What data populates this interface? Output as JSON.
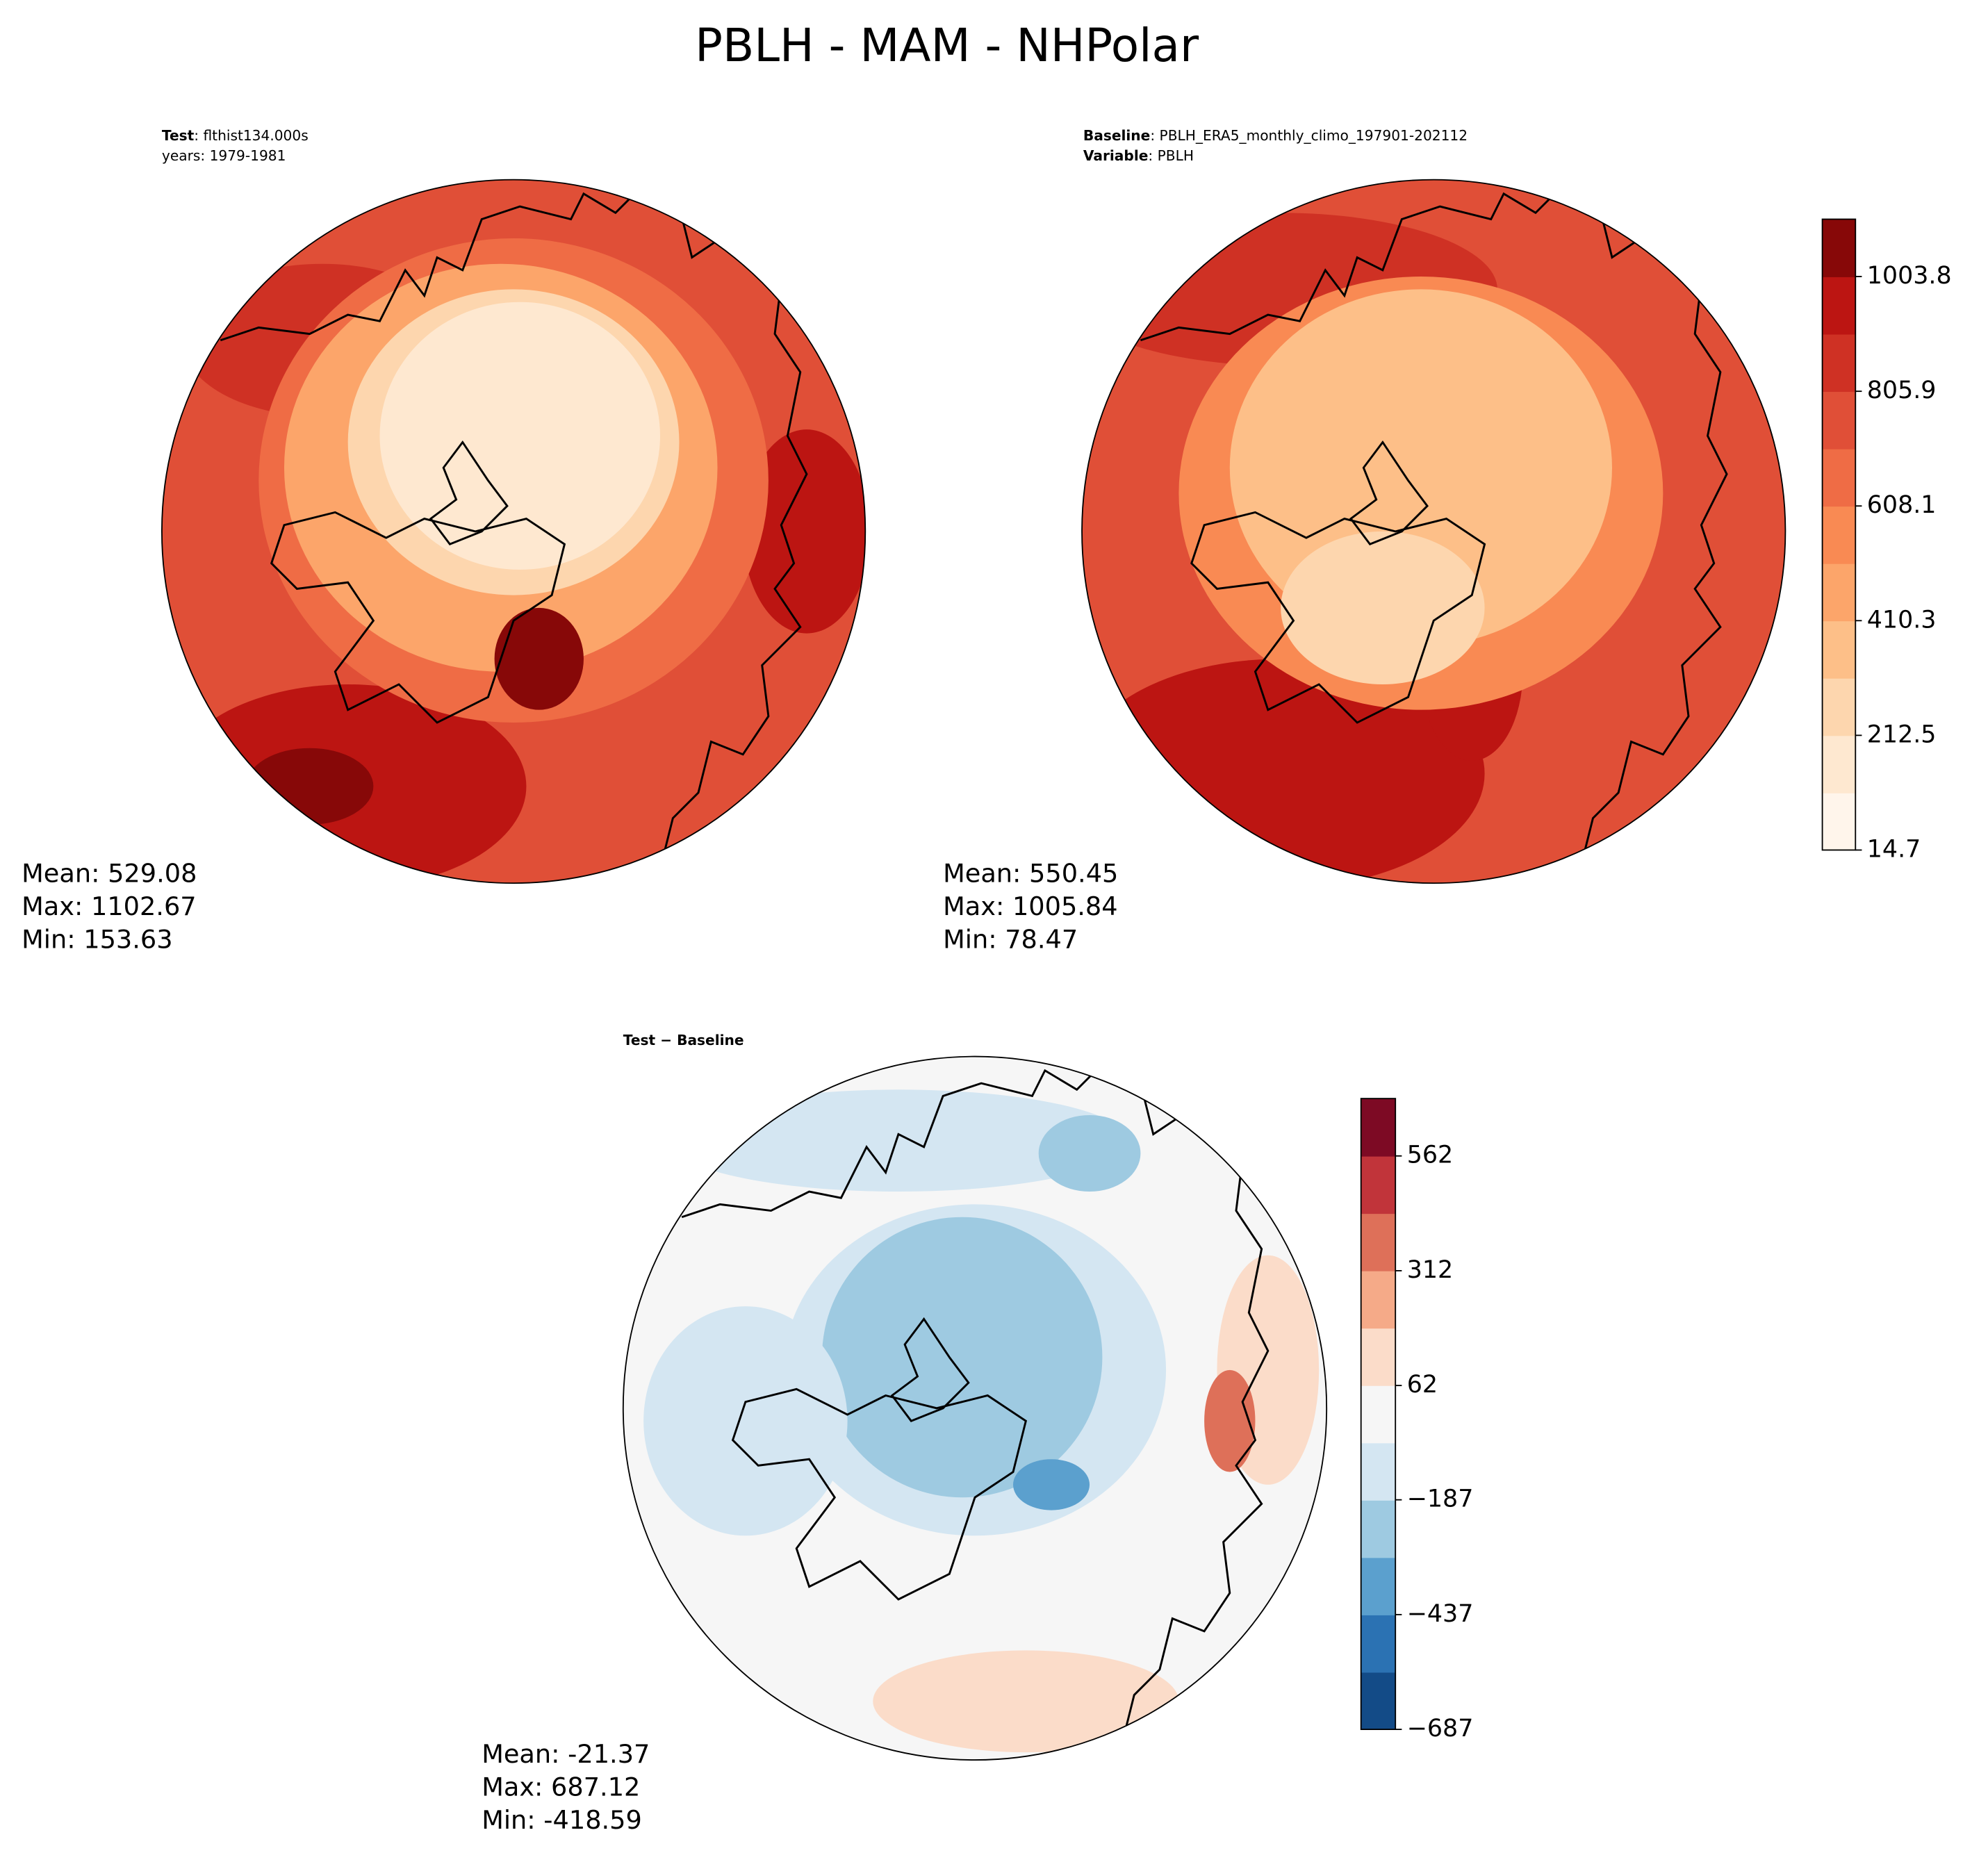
{
  "title": "PBLH - MAM - NHPolar",
  "panels": [
    {
      "header": [
        {
          "label": "Test",
          "text": ": flthist134.000s"
        },
        {
          "text": "years: 1979-1981"
        }
      ],
      "stats": [
        "Mean: 529.08",
        "Max: 1102.67",
        "Min: 153.63"
      ]
    },
    {
      "header": [
        {
          "label": "Baseline",
          "text": ": PBLH_ERA5_monthly_climo_197901-202112"
        },
        {
          "label": "Variable",
          "text": ": PBLH"
        }
      ],
      "stats": [
        "Mean: 550.45",
        "Max: 1005.84",
        "Min: 78.47"
      ]
    },
    {
      "header": [
        {
          "label": "Test − Baseline"
        }
      ],
      "stats": [
        "Mean: -21.37",
        "Max: 687.12",
        "Min: -418.59"
      ]
    }
  ],
  "colorbars": [
    {
      "lim": [
        14.7,
        1102.67
      ],
      "ticks": [
        14.7,
        212.5,
        410.3,
        608.1,
        805.9,
        1003.8
      ],
      "colors": [
        "#fff5eb",
        "#fee8d0",
        "#fdd6ae",
        "#fdbf88",
        "#fca56a",
        "#f98a53",
        "#ef6c45",
        "#e04f37",
        "#cf3124",
        "#bc1512",
        "#870808"
      ]
    },
    {
      "lim": [
        -687,
        687
      ],
      "ticks": [
        {
          "value": -687,
          "label": "−687"
        },
        {
          "value": -437,
          "label": "−437"
        },
        {
          "value": -187,
          "label": "−187"
        },
        62,
        312,
        562
      ],
      "colors": [
        "#134b87",
        "#2b72b3",
        "#5ba0ce",
        "#9ecae1",
        "#d4e6f2",
        "#f6f6f6",
        "#fbdcc9",
        "#f5aa88",
        "#de7059",
        "#c1343a",
        "#7d0a24"
      ]
    }
  ]
}
